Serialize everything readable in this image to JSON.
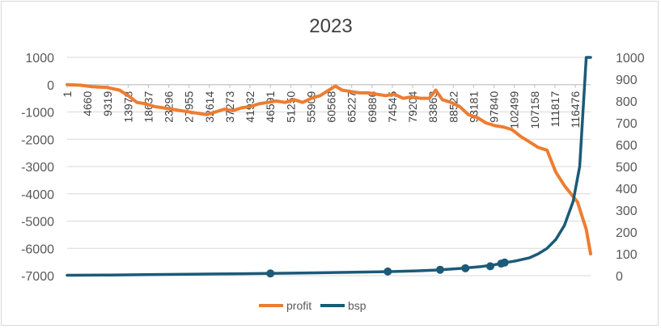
{
  "chart_data": {
    "type": "line",
    "title": "2023",
    "legend_position": "bottom",
    "grid": true,
    "x_tick_labels": [
      "1",
      "4660",
      "9319",
      "13978",
      "18637",
      "23296",
      "27955",
      "32614",
      "37273",
      "41932",
      "46591",
      "51250",
      "55909",
      "60568",
      "65227",
      "69886",
      "74545",
      "79204",
      "83863",
      "88522",
      "93181",
      "97840",
      "102499",
      "107158",
      "111817",
      "116476"
    ],
    "x_range": [
      1,
      120000
    ],
    "y_left": {
      "range": [
        -7000,
        1000
      ],
      "ticks": [
        "1000",
        "0",
        "-1000",
        "-2000",
        "-3000",
        "-4000",
        "-5000",
        "-6000",
        "-7000"
      ]
    },
    "y_right": {
      "range": [
        0,
        1000
      ],
      "ticks": [
        "1000",
        "900",
        "800",
        "700",
        "600",
        "500",
        "400",
        "300",
        "200",
        "100",
        "0"
      ]
    },
    "series": [
      {
        "name": "profit",
        "axis": "left",
        "color": "#ed7d31",
        "x": [
          1,
          3000,
          6000,
          9000,
          12000,
          14000,
          16000,
          18000,
          20000,
          22000,
          24000,
          26000,
          28000,
          30000,
          32000,
          34000,
          36000,
          38000,
          40000,
          42000,
          44000,
          46000,
          48000,
          50000,
          52000,
          54000,
          56000,
          58000,
          60000,
          61500,
          63000,
          65000,
          67000,
          69000,
          71000,
          73000,
          75000,
          77000,
          79000,
          81000,
          83000,
          84500,
          86000,
          88000,
          90000,
          92000,
          94000,
          96000,
          98000,
          100000,
          102000,
          104000,
          106000,
          108000,
          110000,
          112000,
          114000,
          116000,
          117000,
          118000,
          119000,
          120000
        ],
        "values": [
          0,
          -20,
          -80,
          -100,
          -200,
          -400,
          -650,
          -700,
          -800,
          -850,
          -900,
          -950,
          -1000,
          -1050,
          -1100,
          -1000,
          -900,
          -950,
          -850,
          -800,
          -700,
          -650,
          -600,
          -650,
          -550,
          -650,
          -500,
          -400,
          -200,
          -50,
          -200,
          -250,
          -300,
          -300,
          -350,
          -400,
          -350,
          -500,
          -450,
          -500,
          -500,
          -200,
          -550,
          -650,
          -800,
          -1100,
          -1200,
          -1400,
          -1500,
          -1550,
          -1650,
          -1900,
          -2100,
          -2300,
          -2400,
          -3200,
          -3700,
          -4100,
          -4300,
          -4800,
          -5300,
          -6200
        ]
      },
      {
        "name": "bsp",
        "axis": "right",
        "color": "#1b5a78",
        "x": [
          1,
          10000,
          20000,
          30000,
          40000,
          50000,
          60000,
          70000,
          75000,
          80000,
          85000,
          90000,
          95000,
          98000,
          100000,
          103000,
          106000,
          108000,
          110000,
          112000,
          114000,
          116000,
          117500,
          119000,
          120000
        ],
        "values": [
          2,
          3,
          5,
          7,
          9,
          11,
          14,
          17,
          19,
          22,
          26,
          33,
          42,
          50,
          58,
          68,
          82,
          100,
          125,
          165,
          230,
          340,
          500,
          1000,
          1000
        ],
        "markers": [
          {
            "x": 46591,
            "value": 10
          },
          {
            "x": 73500,
            "value": 19
          },
          {
            "x": 85500,
            "value": 27
          },
          {
            "x": 91300,
            "value": 34
          },
          {
            "x": 97000,
            "value": 43
          },
          {
            "x": 99500,
            "value": 55
          },
          {
            "x": 100300,
            "value": 60
          }
        ]
      }
    ]
  }
}
